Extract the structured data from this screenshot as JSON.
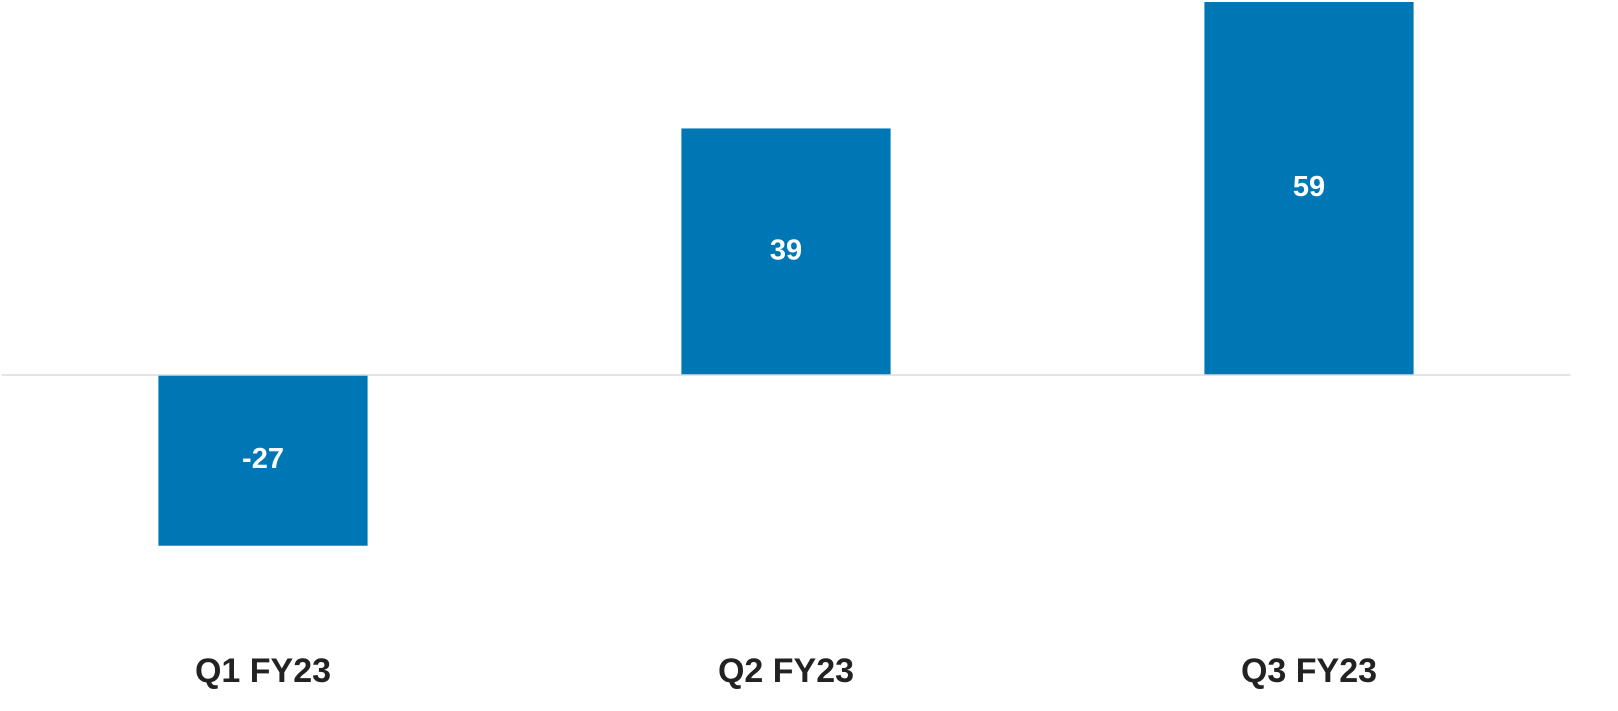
{
  "chart_data": {
    "type": "bar",
    "categories": [
      "Q1 FY23",
      "Q2 FY23",
      "Q3 FY23"
    ],
    "values": [
      -27,
      39,
      59
    ],
    "color": "#0077b5",
    "ylim": [
      -30,
      59
    ]
  }
}
